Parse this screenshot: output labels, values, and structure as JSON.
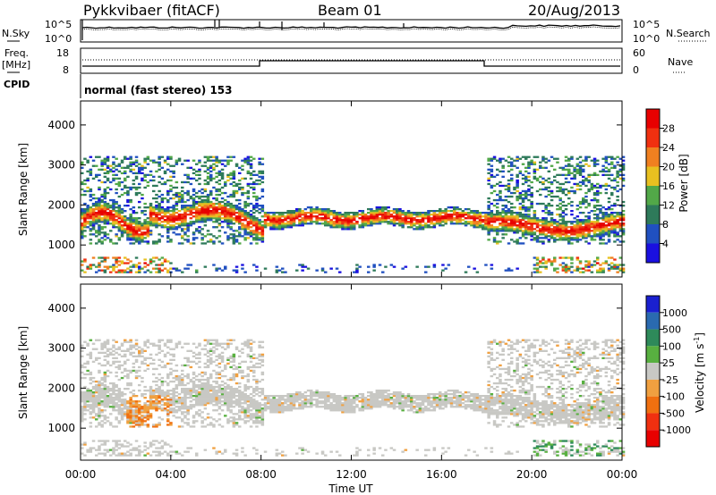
{
  "header": {
    "station": "Pykkvibaer (fitACF)",
    "beam": "Beam 01",
    "date": "20/Aug/2013"
  },
  "status_panels": {
    "noise": {
      "left_label": "N.Sky",
      "left_ticks": [
        "10^5",
        "10^0"
      ],
      "right_ticks": [
        "10^5",
        "10^0"
      ],
      "right_label": "N.Search"
    },
    "freq": {
      "left_label_line1": "Freq.",
      "left_label_line2": "[MHz]",
      "left_ticks": [
        "18",
        "8"
      ],
      "right_ticks": [
        "60",
        "0"
      ],
      "right_label": "Nave"
    },
    "cpid": {
      "label": "CPID",
      "mode": "normal (fast stereo) 153"
    }
  },
  "chart_data": [
    {
      "type": "heatmap",
      "name": "power",
      "ylabel": "Slant Range [km]",
      "xlabel": "",
      "ylim": [
        200,
        4600
      ],
      "yticks": [
        "1000",
        "2000",
        "3000",
        "4000"
      ],
      "colorbar_label": "Power [dB]",
      "colorbar_ticks": [
        "4",
        "8",
        "12",
        "16",
        "20",
        "24",
        "28"
      ],
      "colors": [
        "#1a10e0",
        "#2050c0",
        "#2e7a5a",
        "#52a848",
        "#e8c020",
        "#f08020",
        "#f03010",
        "#e80000"
      ],
      "bands": [
        {
          "t": [
            0,
            3
          ],
          "r": [
            1250,
            2000
          ],
          "level": "high"
        },
        {
          "t": [
            3,
            8
          ],
          "r": [
            1500,
            2300
          ],
          "level": "mid"
        },
        {
          "t": [
            8,
            18
          ],
          "r": [
            1300,
            2000
          ],
          "level": "high"
        },
        {
          "t": [
            18,
            24
          ],
          "r": [
            1100,
            1900
          ],
          "level": "high"
        }
      ]
    },
    {
      "type": "heatmap",
      "name": "velocity",
      "ylabel": "Slant Range [km]",
      "xlabel": "Time UT",
      "ylim": [
        200,
        4600
      ],
      "yticks": [
        "1000",
        "2000",
        "3000",
        "4000"
      ],
      "xticks": [
        "00:00",
        "04:00",
        "08:00",
        "12:00",
        "16:00",
        "20:00",
        "00:00"
      ],
      "colorbar_label": "Velocity [m s",
      "colorbar_label_sup": "-1",
      "colorbar_ticks": [
        "1000",
        "500",
        "100",
        "25",
        "-25",
        "-100",
        "-500",
        "-1000"
      ],
      "colors": [
        "#1a20d0",
        "#2a6ab0",
        "#2e8a5a",
        "#58b040",
        "#c8c8c4",
        "#f0a040",
        "#f07010",
        "#f03010",
        "#e80000"
      ]
    }
  ]
}
